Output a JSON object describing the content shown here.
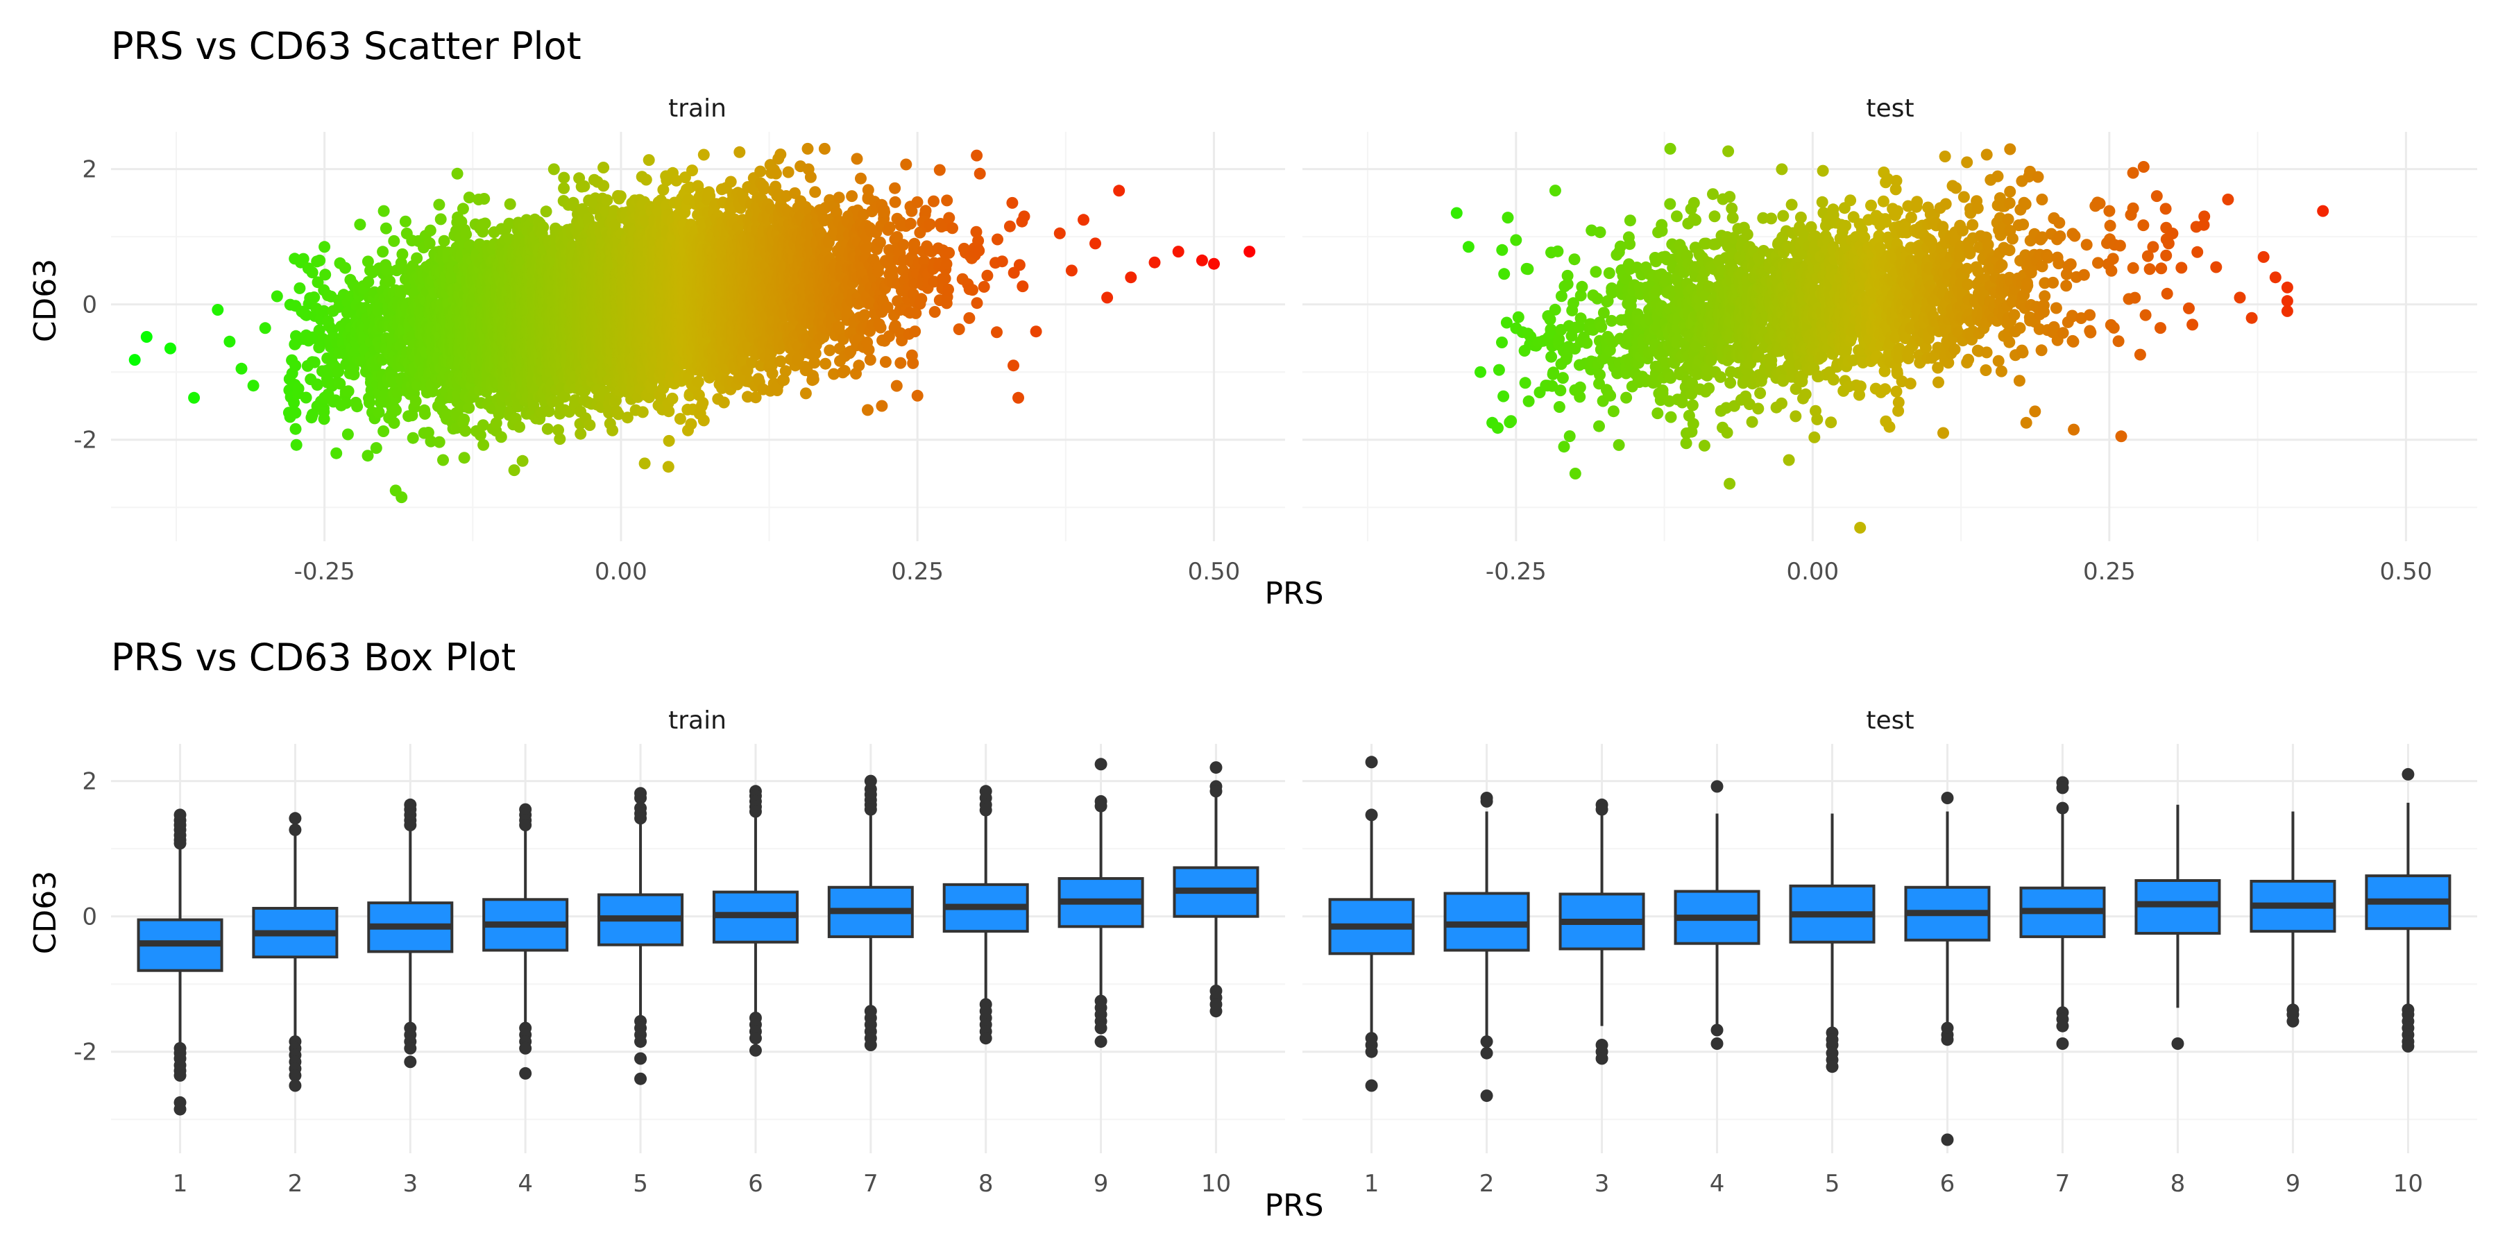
{
  "chart_data": [
    {
      "type": "scatter",
      "title": "PRS vs CD63 Scatter Plot",
      "xlabel": "PRS",
      "ylabel": "CD63",
      "xlim": [
        -0.43,
        0.56
      ],
      "ylim": [
        -3.5,
        2.55
      ],
      "x_ticks": [
        -0.25,
        0.0,
        0.25,
        0.5
      ],
      "x_tick_labels": [
        "-0.25",
        "0.00",
        "0.25",
        "0.50"
      ],
      "y_ticks": [
        -2,
        0,
        2
      ],
      "y_tick_labels": [
        "-2",
        "0",
        "2"
      ],
      "grid": true,
      "color_scale": {
        "low": "#00ff00",
        "mid": "#c8b400",
        "high": "#ff0000",
        "domain": [
          -0.42,
          0.53
        ]
      },
      "facets": [
        {
          "label": "train",
          "n_points": 9000,
          "cloud": {
            "x_mean": 0.0,
            "x_sd": 0.105,
            "x_min": -0.28,
            "x_max": 0.34,
            "slope": 2.2,
            "resid_sd": 0.62
          },
          "points": [
            [
              -0.41,
              -0.82
            ],
            [
              -0.4,
              -0.48
            ],
            [
              -0.38,
              -0.65
            ],
            [
              -0.36,
              -1.38
            ],
            [
              -0.34,
              -0.08
            ],
            [
              -0.33,
              -0.55
            ],
            [
              -0.32,
              -0.95
            ],
            [
              -0.31,
              -1.2
            ],
            [
              -0.3,
              -0.35
            ],
            [
              -0.29,
              0.12
            ],
            [
              -0.28,
              -1.6
            ],
            [
              -0.27,
              0.62
            ],
            [
              -0.25,
              0.85
            ],
            [
              -0.24,
              -2.2
            ],
            [
              -0.22,
              1.18
            ],
            [
              -0.2,
              1.38
            ],
            [
              -0.19,
              -2.75
            ],
            [
              -0.185,
              -2.85
            ],
            [
              -0.15,
              -2.3
            ],
            [
              -0.12,
              1.55
            ],
            [
              -0.09,
              -2.45
            ],
            [
              0.02,
              -2.35
            ],
            [
              0.04,
              -2.4
            ],
            [
              0.06,
              1.98
            ],
            [
              0.1,
              2.25
            ],
            [
              0.16,
              1.88
            ],
            [
              0.22,
              -1.5
            ],
            [
              0.25,
              -1.35
            ],
            [
              0.3,
              2.2
            ],
            [
              0.33,
              1.5
            ],
            [
              0.34,
              1.3
            ],
            [
              0.35,
              -0.4
            ],
            [
              0.37,
              1.05
            ],
            [
              0.38,
              0.5
            ],
            [
              0.39,
              1.25
            ],
            [
              0.4,
              0.9
            ],
            [
              0.41,
              0.1
            ],
            [
              0.42,
              1.68
            ],
            [
              0.43,
              0.4
            ],
            [
              0.45,
              0.62
            ],
            [
              0.47,
              0.78
            ],
            [
              0.49,
              0.65
            ],
            [
              0.5,
              0.6
            ],
            [
              0.53,
              0.78
            ],
            [
              0.335,
              -1.38
            ]
          ]
        },
        {
          "label": "test",
          "n_points": 2400,
          "cloud": {
            "x_mean": 0.0,
            "x_sd": 0.105,
            "x_min": -0.27,
            "x_max": 0.33,
            "slope": 2.2,
            "resid_sd": 0.62
          },
          "points": [
            [
              -0.3,
              1.35
            ],
            [
              -0.29,
              0.85
            ],
            [
              -0.28,
              -1.0
            ],
            [
              -0.27,
              -1.75
            ],
            [
              -0.26,
              0.45
            ],
            [
              -0.25,
              0.95
            ],
            [
              -0.23,
              -1.3
            ],
            [
              -0.2,
              -2.5
            ],
            [
              -0.18,
              -1.8
            ],
            [
              -0.12,
              2.3
            ],
            [
              -0.1,
              1.5
            ],
            [
              -0.07,
              -2.65
            ],
            [
              -0.02,
              -2.3
            ],
            [
              0.04,
              -3.3
            ],
            [
              0.06,
              1.95
            ],
            [
              0.07,
              1.7
            ],
            [
              0.11,
              -1.9
            ],
            [
              0.13,
              2.1
            ],
            [
              0.16,
              1.45
            ],
            [
              0.18,
              -1.75
            ],
            [
              0.22,
              -1.85
            ],
            [
              0.25,
              1.38
            ],
            [
              0.26,
              -1.95
            ],
            [
              0.27,
              1.42
            ],
            [
              0.29,
              1.6
            ],
            [
              0.3,
              0.9
            ],
            [
              0.32,
              -0.3
            ],
            [
              0.33,
              1.3
            ],
            [
              0.34,
              0.55
            ],
            [
              0.35,
              1.55
            ],
            [
              0.36,
              0.1
            ],
            [
              0.38,
              0.7
            ],
            [
              0.39,
              0.4
            ],
            [
              0.4,
              0.25
            ],
            [
              0.4,
              -0.1
            ],
            [
              0.4,
              0.05
            ],
            [
              0.43,
              1.38
            ],
            [
              0.37,
              -0.2
            ]
          ]
        }
      ]
    },
    {
      "type": "box",
      "title": "PRS vs CD63 Box Plot",
      "xlabel": "PRS",
      "ylabel": "CD63",
      "categories": [
        "1",
        "2",
        "3",
        "4",
        "5",
        "6",
        "7",
        "8",
        "9",
        "10"
      ],
      "ylim": [
        -3.5,
        2.55
      ],
      "y_ticks": [
        -2,
        0,
        2
      ],
      "y_tick_labels": [
        "-2",
        "0",
        "2"
      ],
      "grid": true,
      "box_color": "#1e90ff",
      "facets": [
        {
          "label": "train",
          "boxes": [
            {
              "q1": -0.8,
              "median": -0.4,
              "q3": -0.05,
              "lower": -1.9,
              "upper": 1.05,
              "outliers": [
                1.5,
                1.42,
                1.35,
                1.28,
                1.2,
                1.13,
                1.08,
                -1.95,
                -2.02,
                -2.1,
                -2.2,
                -2.28,
                -2.35,
                -2.75,
                -2.85
              ]
            },
            {
              "q1": -0.6,
              "median": -0.25,
              "q3": 0.12,
              "lower": -1.8,
              "upper": 1.2,
              "outliers": [
                1.45,
                1.28,
                -1.85,
                -1.95,
                -2.05,
                -2.15,
                -2.25,
                -2.35,
                -2.5
              ]
            },
            {
              "q1": -0.52,
              "median": -0.15,
              "q3": 0.2,
              "lower": -1.6,
              "upper": 1.28,
              "outliers": [
                1.65,
                1.58,
                1.5,
                1.42,
                1.35,
                -1.65,
                -1.75,
                -1.85,
                -1.95,
                -2.15
              ]
            },
            {
              "q1": -0.5,
              "median": -0.12,
              "q3": 0.25,
              "lower": -1.6,
              "upper": 1.32,
              "outliers": [
                1.58,
                1.5,
                1.42,
                1.35,
                -1.65,
                -1.75,
                -1.85,
                -1.95,
                -2.32
              ]
            },
            {
              "q1": -0.42,
              "median": -0.03,
              "q3": 0.32,
              "lower": -1.5,
              "upper": 1.42,
              "outliers": [
                1.82,
                1.75,
                1.6,
                1.52,
                1.45,
                -1.55,
                -1.65,
                -1.75,
                -1.85,
                -2.1,
                -2.4
              ]
            },
            {
              "q1": -0.38,
              "median": 0.02,
              "q3": 0.36,
              "lower": -1.45,
              "upper": 1.48,
              "outliers": [
                1.85,
                1.78,
                1.7,
                1.62,
                1.55,
                -1.5,
                -1.6,
                -1.7,
                -1.8,
                -1.98
              ]
            },
            {
              "q1": -0.3,
              "median": 0.08,
              "q3": 0.43,
              "lower": -1.35,
              "upper": 1.5,
              "outliers": [
                2.0,
                1.88,
                1.8,
                1.72,
                1.65,
                1.58,
                -1.4,
                -1.5,
                -1.6,
                -1.7,
                -1.8,
                -1.9
              ]
            },
            {
              "q1": -0.22,
              "median": 0.14,
              "q3": 0.47,
              "lower": -1.25,
              "upper": 1.52,
              "outliers": [
                1.85,
                1.75,
                1.65,
                1.57,
                -1.3,
                -1.4,
                -1.5,
                -1.6,
                -1.7,
                -1.8
              ]
            },
            {
              "q1": -0.15,
              "median": 0.22,
              "q3": 0.56,
              "lower": -1.2,
              "upper": 1.58,
              "outliers": [
                2.25,
                1.7,
                1.63,
                -1.25,
                -1.35,
                -1.45,
                -1.55,
                -1.65,
                -1.85
              ]
            },
            {
              "q1": 0.0,
              "median": 0.38,
              "q3": 0.72,
              "lower": -1.05,
              "upper": 1.78,
              "outliers": [
                2.2,
                1.92,
                1.85,
                -1.1,
                -1.2,
                -1.3,
                -1.4
              ]
            }
          ]
        },
        {
          "label": "test",
          "boxes": [
            {
              "q1": -0.55,
              "median": -0.15,
              "q3": 0.25,
              "lower": -1.75,
              "upper": 1.5,
              "outliers": [
                2.28,
                1.5,
                -1.8,
                -1.9,
                -2.0,
                -2.5
              ]
            },
            {
              "q1": -0.5,
              "median": -0.12,
              "q3": 0.34,
              "lower": -1.8,
              "upper": 1.55,
              "outliers": [
                1.75,
                1.7,
                -1.85,
                -2.02,
                -2.65
              ]
            },
            {
              "q1": -0.48,
              "median": -0.08,
              "q3": 0.33,
              "lower": -1.62,
              "upper": 1.5,
              "outliers": [
                1.65,
                1.58,
                -1.9,
                -2.0,
                -2.1
              ]
            },
            {
              "q1": -0.4,
              "median": -0.02,
              "q3": 0.37,
              "lower": -1.62,
              "upper": 1.52,
              "outliers": [
                1.92,
                -1.68,
                -1.88
              ]
            },
            {
              "q1": -0.38,
              "median": 0.03,
              "q3": 0.45,
              "lower": -1.65,
              "upper": 1.52,
              "outliers": [
                -1.72,
                -1.82,
                -1.9,
                -2.02,
                -2.12,
                -2.22
              ]
            },
            {
              "q1": -0.35,
              "median": 0.05,
              "q3": 0.43,
              "lower": -1.6,
              "upper": 1.55,
              "outliers": [
                1.75,
                -1.65,
                -1.75,
                -1.82,
                -3.3
              ]
            },
            {
              "q1": -0.3,
              "median": 0.08,
              "q3": 0.42,
              "lower": -1.38,
              "upper": 1.55,
              "outliers": [
                1.98,
                1.9,
                1.6,
                -1.42,
                -1.52,
                -1.62,
                -1.88
              ]
            },
            {
              "q1": -0.25,
              "median": 0.18,
              "q3": 0.53,
              "lower": -1.35,
              "upper": 1.65,
              "outliers": [
                -1.88
              ]
            },
            {
              "q1": -0.22,
              "median": 0.16,
              "q3": 0.52,
              "lower": -1.3,
              "upper": 1.55,
              "outliers": [
                -1.38,
                -1.45,
                -1.55
              ]
            },
            {
              "q1": -0.18,
              "median": 0.22,
              "q3": 0.6,
              "lower": -1.3,
              "upper": 1.68,
              "outliers": [
                2.1,
                -1.38,
                -1.45,
                -1.55,
                -1.65,
                -1.75,
                -1.85,
                -1.92
              ]
            }
          ]
        }
      ]
    }
  ]
}
